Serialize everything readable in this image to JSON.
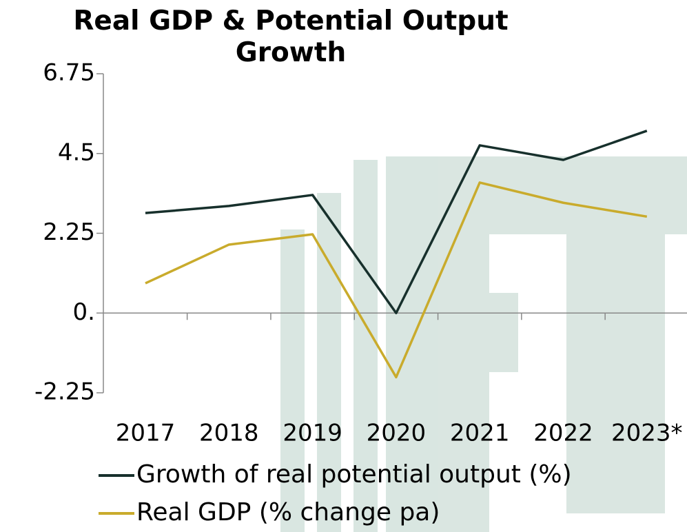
{
  "chart_data": {
    "type": "line",
    "title": "Real GDP & Potential  Output Growth",
    "categories": [
      "2017",
      "2018",
      "2019",
      "2020",
      "2021",
      "2022",
      "2023*"
    ],
    "series": [
      {
        "name": "Growth of real potential output (%)",
        "color": "#17302c",
        "values": [
          2.82,
          3.02,
          3.33,
          0,
          4.73,
          4.32,
          5.14
        ]
      },
      {
        "name": "Real GDP (% change pa)",
        "color": "#c9ab2c",
        "values": [
          0.84,
          1.93,
          2.22,
          -1.81,
          3.68,
          3.11,
          2.72
        ]
      }
    ],
    "ylim": [
      -2.25,
      6.75
    ],
    "yticks": [
      -2.25,
      {
        "value": 0,
        "label": "0."
      },
      2.25,
      4.5,
      6.75
    ]
  }
}
